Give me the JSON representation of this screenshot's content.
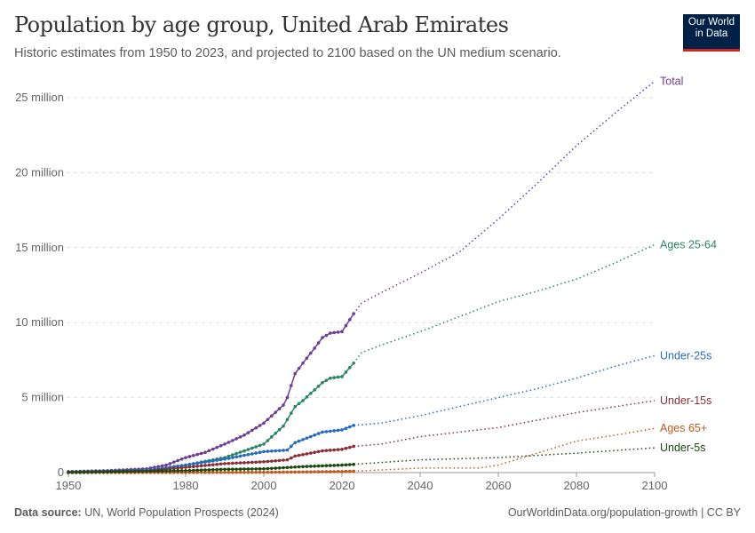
{
  "header": {
    "title": "Population by age group, United Arab Emirates",
    "subtitle": "Historic estimates from 1950 to 2023, and projected to 2100 based on the UN medium scenario.",
    "logo": "Our World in Data"
  },
  "footer": {
    "source_label": "Data source:",
    "source": " UN, World Population Prospects (2024)",
    "url": "OurWorldinData.org/population-growth | CC BY"
  },
  "chart_data": {
    "type": "line",
    "title": "Population by age group, United Arab Emirates",
    "xlim": [
      1950,
      2100
    ],
    "ylim": [
      0,
      25
    ],
    "x_ticks": [
      "1950",
      "1980",
      "2000",
      "2020",
      "2040",
      "2060",
      "2080",
      "2100"
    ],
    "y_ticks": [
      "0",
      "5 million",
      "10 million",
      "15 million",
      "20 million",
      "25 million"
    ],
    "y_unit": "million",
    "historic_end": 2023,
    "grid": "horizontal dashed",
    "series": [
      {
        "name": "Total",
        "color": "#6d3e91",
        "points": [
          [
            1950,
            0.07
          ],
          [
            1960,
            0.13
          ],
          [
            1970,
            0.25
          ],
          [
            1975,
            0.5
          ],
          [
            1980,
            1.0
          ],
          [
            1985,
            1.35
          ],
          [
            1990,
            1.9
          ],
          [
            1995,
            2.5
          ],
          [
            2000,
            3.3
          ],
          [
            2005,
            4.5
          ],
          [
            2006,
            5.0
          ],
          [
            2008,
            6.6
          ],
          [
            2010,
            7.3
          ],
          [
            2013,
            8.3
          ],
          [
            2015,
            9.0
          ],
          [
            2017,
            9.3
          ],
          [
            2020,
            9.4
          ],
          [
            2023,
            10.6
          ],
          [
            2025,
            11.3
          ],
          [
            2030,
            12.0
          ],
          [
            2040,
            13.3
          ],
          [
            2050,
            14.7
          ],
          [
            2060,
            16.9
          ],
          [
            2070,
            19.3
          ],
          [
            2080,
            21.8
          ],
          [
            2090,
            24.0
          ],
          [
            2100,
            26.1
          ]
        ]
      },
      {
        "name": "Ages 25-64",
        "color": "#2c8465",
        "points": [
          [
            1950,
            0.03
          ],
          [
            1970,
            0.12
          ],
          [
            1980,
            0.5
          ],
          [
            1990,
            1.0
          ],
          [
            2000,
            1.9
          ],
          [
            2005,
            3.1
          ],
          [
            2008,
            4.4
          ],
          [
            2010,
            4.8
          ],
          [
            2015,
            6.0
          ],
          [
            2017,
            6.3
          ],
          [
            2020,
            6.4
          ],
          [
            2023,
            7.3
          ],
          [
            2025,
            8.0
          ],
          [
            2030,
            8.5
          ],
          [
            2040,
            9.4
          ],
          [
            2050,
            10.4
          ],
          [
            2060,
            11.4
          ],
          [
            2070,
            12.1
          ],
          [
            2080,
            12.9
          ],
          [
            2090,
            14.0
          ],
          [
            2100,
            15.2
          ]
        ]
      },
      {
        "name": "Under-25s",
        "color": "#286bbb",
        "points": [
          [
            1950,
            0.04
          ],
          [
            1970,
            0.15
          ],
          [
            1980,
            0.5
          ],
          [
            1990,
            0.9
          ],
          [
            2000,
            1.4
          ],
          [
            2006,
            1.5
          ],
          [
            2008,
            2.0
          ],
          [
            2010,
            2.2
          ],
          [
            2015,
            2.7
          ],
          [
            2020,
            2.85
          ],
          [
            2023,
            3.15
          ],
          [
            2030,
            3.3
          ],
          [
            2040,
            3.8
          ],
          [
            2050,
            4.4
          ],
          [
            2060,
            5.0
          ],
          [
            2070,
            5.6
          ],
          [
            2080,
            6.3
          ],
          [
            2090,
            7.1
          ],
          [
            2100,
            7.8
          ]
        ]
      },
      {
        "name": "Under-15s",
        "color": "#883039",
        "points": [
          [
            1950,
            0.03
          ],
          [
            1970,
            0.1
          ],
          [
            1980,
            0.35
          ],
          [
            1990,
            0.6
          ],
          [
            2000,
            0.72
          ],
          [
            2006,
            0.85
          ],
          [
            2008,
            1.1
          ],
          [
            2015,
            1.45
          ],
          [
            2020,
            1.55
          ],
          [
            2023,
            1.75
          ],
          [
            2030,
            1.9
          ],
          [
            2040,
            2.4
          ],
          [
            2050,
            2.7
          ],
          [
            2060,
            3.0
          ],
          [
            2070,
            3.5
          ],
          [
            2080,
            4.0
          ],
          [
            2090,
            4.4
          ],
          [
            2100,
            4.8
          ]
        ]
      },
      {
        "name": "Ages 65+",
        "color": "#c15a1f",
        "points": [
          [
            1950,
            0.002
          ],
          [
            1980,
            0.01
          ],
          [
            2000,
            0.02
          ],
          [
            2020,
            0.07
          ],
          [
            2023,
            0.09
          ],
          [
            2040,
            0.3
          ],
          [
            2055,
            0.3
          ],
          [
            2060,
            0.5
          ],
          [
            2070,
            1.3
          ],
          [
            2080,
            2.1
          ],
          [
            2090,
            2.5
          ],
          [
            2100,
            2.95
          ]
        ]
      },
      {
        "name": "Under-5s",
        "color": "#18470f",
        "points": [
          [
            1950,
            0.01
          ],
          [
            1980,
            0.13
          ],
          [
            1990,
            0.22
          ],
          [
            2000,
            0.25
          ],
          [
            2010,
            0.4
          ],
          [
            2020,
            0.5
          ],
          [
            2023,
            0.55
          ],
          [
            2040,
            0.85
          ],
          [
            2060,
            1.0
          ],
          [
            2080,
            1.3
          ],
          [
            2100,
            1.65
          ]
        ]
      }
    ]
  }
}
